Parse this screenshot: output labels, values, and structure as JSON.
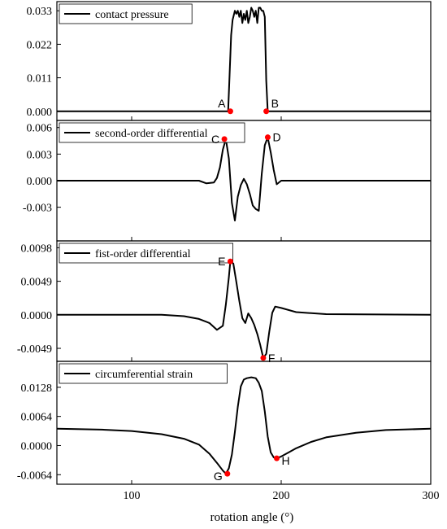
{
  "chart_data": {
    "type": "line",
    "xlabel": "rotation angle (°)",
    "xlim": [
      50,
      300
    ],
    "x_ticks": [
      100,
      200,
      300
    ],
    "panels": [
      {
        "legend": "contact pressure",
        "ylim": [
          -0.003,
          0.036
        ],
        "y_ticks": [
          0.0,
          0.011,
          0.022,
          0.033
        ],
        "y_tick_labels": [
          "0.000",
          "0.011",
          "0.022",
          "0.033"
        ],
        "series": [
          {
            "x": [
              50,
              150,
              164.5,
              165.5,
              166.5,
              167.5,
              169,
              170,
              171,
              172,
              173,
              174,
              175,
              176,
              177,
              178,
              179,
              180,
              181,
              182,
              183,
              184,
              185,
              186,
              187,
              188,
              189,
              190,
              191,
              200,
              300
            ],
            "y": [
              0.0,
              0.0,
              0.0,
              0.012,
              0.025,
              0.03,
              0.033,
              0.032,
              0.033,
              0.031,
              0.033,
              0.029,
              0.032,
              0.03,
              0.033,
              0.029,
              0.031,
              0.034,
              0.033,
              0.031,
              0.033,
              0.029,
              0.034,
              0.034,
              0.033,
              0.033,
              0.031,
              0.01,
              0.0,
              0.0,
              0.0
            ]
          }
        ],
        "points": [
          {
            "label": "A",
            "x": 166,
            "y": 0.0,
            "label_side": "left"
          },
          {
            "label": "B",
            "x": 190,
            "y": 0.0,
            "label_side": "right"
          }
        ]
      },
      {
        "legend": "second-order differential",
        "ylim": [
          -0.0068,
          0.0068
        ],
        "y_ticks": [
          -0.003,
          0.0,
          0.003,
          0.006
        ],
        "y_tick_labels": [
          "-0.003",
          "0.000",
          "0.003",
          "0.006"
        ],
        "series": [
          {
            "x": [
              50,
              140,
              145,
              150,
              155,
              157,
              159,
              161,
              163,
              165,
              167,
              169,
              171,
              173,
              175,
              177,
              179,
              181,
              183,
              185,
              187,
              189,
              191,
              193,
              195,
              197,
              200,
              210,
              300
            ],
            "y": [
              0.0,
              0.0,
              0.0,
              -0.0003,
              -0.0002,
              0.0003,
              0.0015,
              0.0035,
              0.0047,
              0.0025,
              -0.0025,
              -0.0045,
              -0.0018,
              -0.0005,
              0.0002,
              -0.0004,
              -0.0015,
              -0.0028,
              -0.0032,
              -0.0034,
              0.0008,
              0.004,
              0.0049,
              0.0032,
              0.0012,
              -0.0004,
              0.0,
              0.0,
              0.0
            ]
          }
        ],
        "points": [
          {
            "label": "C",
            "x": 162,
            "y": 0.0047,
            "label_side": "left"
          },
          {
            "label": "D",
            "x": 191,
            "y": 0.0049,
            "label_side": "right"
          }
        ]
      },
      {
        "legend": "fist-order differential",
        "ylim": [
          -0.0068,
          0.0108
        ],
        "y_ticks": [
          -0.0049,
          0.0,
          0.0049,
          0.0098
        ],
        "y_tick_labels": [
          "-0.0049",
          "0.0000",
          "0.0049",
          "0.0098"
        ],
        "series": [
          {
            "x": [
              50,
              120,
              135,
              145,
              152,
              157,
              161,
              163,
              165,
              166,
              168,
              170,
              172,
              174,
              176,
              178,
              180,
              182,
              184,
              186,
              188,
              190,
              192,
              194,
              196,
              200,
              210,
              230,
              300
            ],
            "y": [
              0.0,
              0.0,
              -0.0002,
              -0.0006,
              -0.0012,
              -0.0022,
              -0.0016,
              0.0015,
              0.0055,
              0.0078,
              0.0075,
              0.0048,
              0.002,
              -0.0005,
              -0.0012,
              0.0002,
              -0.0005,
              -0.0015,
              -0.0028,
              -0.0044,
              -0.0063,
              -0.0057,
              -0.0025,
              0.0003,
              0.0012,
              0.001,
              0.0004,
              0.0001,
              0.0
            ]
          }
        ],
        "points": [
          {
            "label": "E",
            "x": 166,
            "y": 0.0078,
            "label_side": "left"
          },
          {
            "label": "F",
            "x": 188,
            "y": -0.0063,
            "label_side": "right"
          }
        ]
      },
      {
        "legend": "circumferential strain",
        "ylim": [
          -0.0085,
          0.0185
        ],
        "y_ticks": [
          -0.0064,
          0.0,
          0.0064,
          0.0128
        ],
        "y_tick_labels": [
          "-0.0064",
          "0.0000",
          "0.0064",
          "0.0128"
        ],
        "series": [
          {
            "x": [
              50,
              80,
              100,
              120,
              135,
              145,
              152,
              157,
              161,
              163,
              165,
              167,
              169,
              171,
              173,
              175,
              177,
              180,
              183,
              185,
              187,
              189,
              191,
              193,
              195,
              197,
              200,
              205,
              210,
              220,
              230,
              250,
              270,
              300
            ],
            "y": [
              0.0037,
              0.0035,
              0.0032,
              0.0025,
              0.0015,
              0.0002,
              -0.0018,
              -0.0038,
              -0.0055,
              -0.0062,
              -0.005,
              -0.002,
              0.003,
              0.0085,
              0.013,
              0.0145,
              0.0148,
              0.015,
              0.0148,
              0.0138,
              0.012,
              0.0075,
              0.002,
              -0.0015,
              -0.0026,
              -0.0028,
              -0.0024,
              -0.0015,
              -0.0006,
              0.0008,
              0.0018,
              0.0028,
              0.0034,
              0.0037
            ]
          }
        ],
        "points": [
          {
            "label": "G",
            "x": 164,
            "y": -0.0062,
            "label_side": "left"
          },
          {
            "label": "H",
            "x": 197,
            "y": -0.0028,
            "label_side": "right"
          }
        ]
      }
    ]
  }
}
